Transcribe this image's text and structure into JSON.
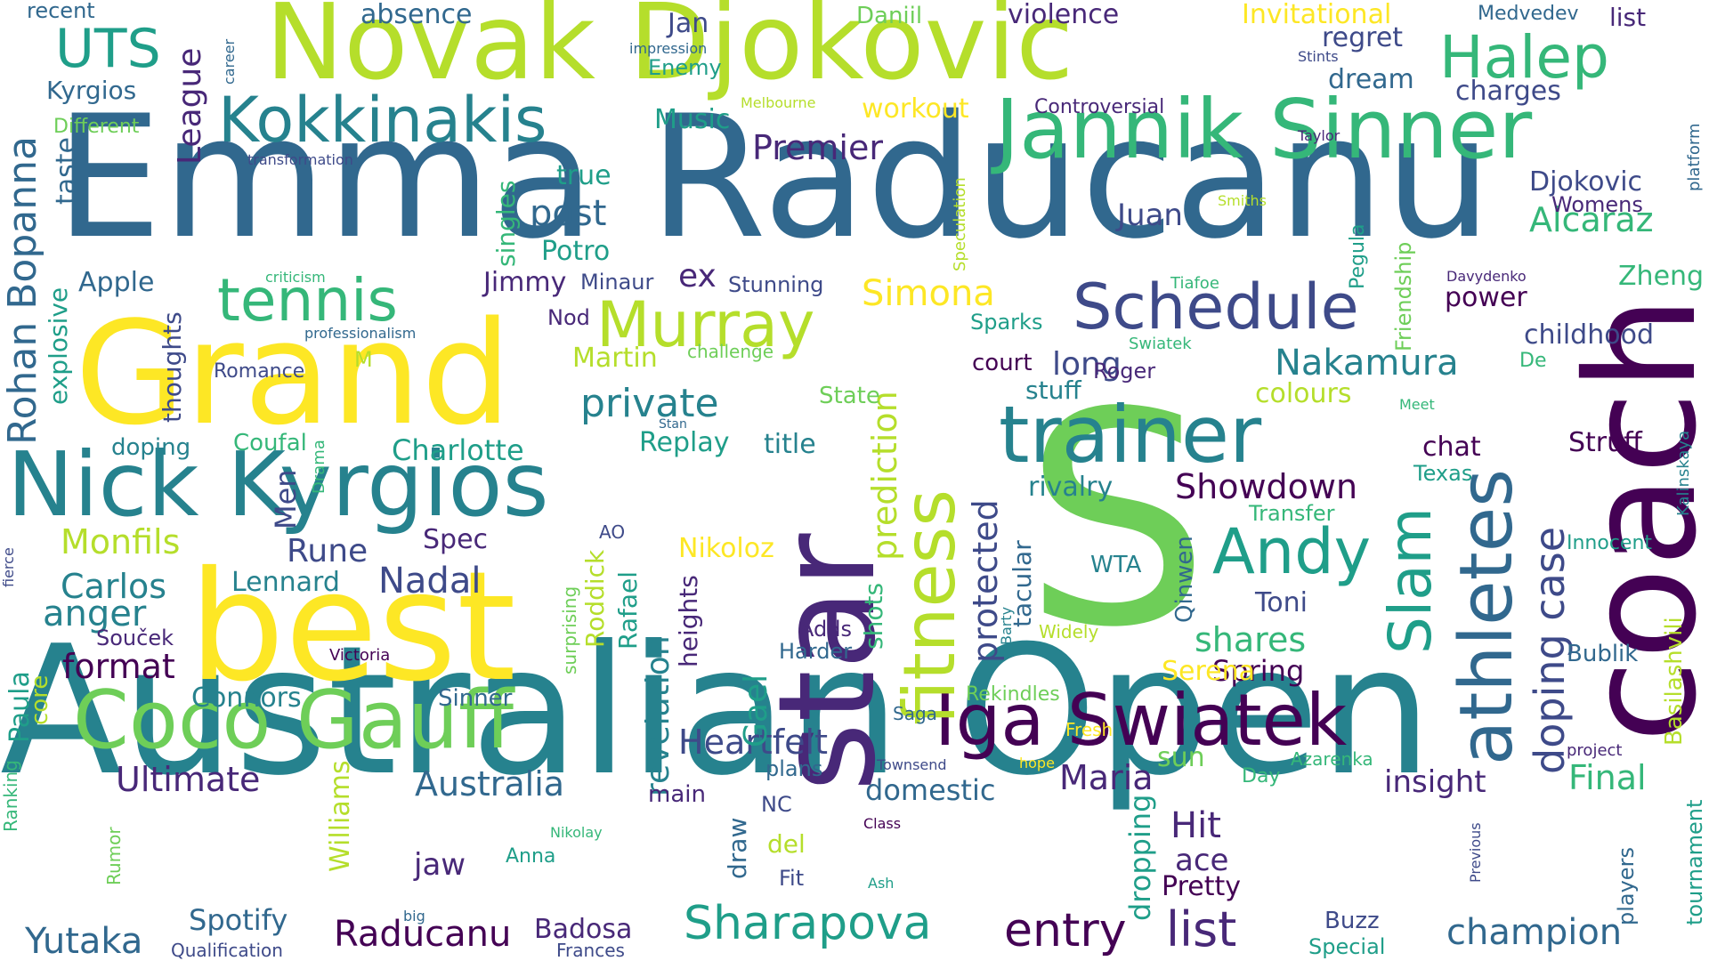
{
  "palette": {
    "v1": "#440154",
    "v2": "#482878",
    "v3": "#3e4a89",
    "v4": "#31688e",
    "v5": "#26828e",
    "v6": "#1f9e89",
    "v7": "#35b779",
    "v8": "#6ece58",
    "v9": "#b5de2b",
    "v10": "#fde725"
  },
  "words": [
    {
      "t": "Australian Open",
      "c": "v5"
    },
    {
      "t": "Emma Raducanu",
      "c": "v4"
    },
    {
      "t": "Novak Djokovic",
      "c": "v9"
    },
    {
      "t": "Grand",
      "c": "v10"
    },
    {
      "t": "S",
      "c": "v8"
    },
    {
      "t": "coach",
      "c": "v1"
    },
    {
      "t": "best",
      "c": "v10"
    },
    {
      "t": "star",
      "c": "v2"
    },
    {
      "t": "Nick Kyrgios",
      "c": "v5"
    },
    {
      "t": "Jannik Sinner",
      "c": "v7"
    },
    {
      "t": "Coco Gauff",
      "c": "v8"
    },
    {
      "t": "athletes",
      "c": "v4"
    },
    {
      "t": "trainer",
      "c": "v5"
    },
    {
      "t": "Iga Swiatek",
      "c": "v1"
    },
    {
      "t": "fitness",
      "c": "v9"
    },
    {
      "t": "Kokkinakis",
      "c": "v5"
    },
    {
      "t": "Schedule",
      "c": "v3"
    },
    {
      "t": "Halep",
      "c": "v7"
    },
    {
      "t": "Murray",
      "c": "v9"
    },
    {
      "t": "tennis",
      "c": "v7"
    },
    {
      "t": "Andy",
      "c": "v6"
    },
    {
      "t": "Slam",
      "c": "v6"
    },
    {
      "t": "Rohan Bopanna",
      "c": "v4"
    },
    {
      "t": "UTS",
      "c": "v6"
    },
    {
      "t": "Sharapova",
      "c": "v6"
    },
    {
      "t": "entry",
      "c": "v1"
    },
    {
      "t": "list",
      "c": "v2"
    },
    {
      "t": "Raducanu",
      "c": "v1"
    },
    {
      "t": "champion",
      "c": "v4"
    },
    {
      "t": "Yutaka",
      "c": "v4"
    },
    {
      "t": "Premier",
      "c": "v2"
    },
    {
      "t": "Alcaraz",
      "c": "v7"
    },
    {
      "t": "Nakamura",
      "c": "v5"
    },
    {
      "t": "Simona",
      "c": "v10"
    },
    {
      "t": "prediction",
      "c": "v9"
    },
    {
      "t": "doping case",
      "c": "v3"
    },
    {
      "t": "League",
      "c": "v2"
    },
    {
      "t": "Showdown",
      "c": "v1"
    },
    {
      "t": "Heartfelt",
      "c": "v3"
    },
    {
      "t": "revelation",
      "c": "v5"
    },
    {
      "t": "Ultimate",
      "c": "v2"
    },
    {
      "t": "Australia",
      "c": "v4"
    },
    {
      "t": "protected",
      "c": "v3"
    },
    {
      "t": "Maria",
      "c": "v2"
    },
    {
      "t": "Final",
      "c": "v7"
    },
    {
      "t": "insight",
      "c": "v2"
    },
    {
      "t": "post",
      "c": "v4"
    },
    {
      "t": "private",
      "c": "v5"
    },
    {
      "t": "Carlos",
      "c": "v5"
    },
    {
      "t": "anger",
      "c": "v5"
    },
    {
      "t": "Monfils",
      "c": "v9"
    },
    {
      "t": "format",
      "c": "v1"
    },
    {
      "t": "Nadal",
      "c": "v3"
    },
    {
      "t": "Rune",
      "c": "v3"
    },
    {
      "t": "Charlotte",
      "c": "v6"
    },
    {
      "t": "shares",
      "c": "v7"
    },
    {
      "t": "Spring",
      "c": "v1"
    },
    {
      "t": "Hit",
      "c": "v2"
    },
    {
      "t": "ace",
      "c": "v2"
    },
    {
      "t": "Pretty",
      "c": "v1"
    },
    {
      "t": "dropping",
      "c": "v6"
    },
    {
      "t": "Williams",
      "c": "v9"
    },
    {
      "t": "Connors",
      "c": "v5"
    },
    {
      "t": "Spotify",
      "c": "v4"
    },
    {
      "t": "jaw",
      "c": "v2"
    },
    {
      "t": "Badosa",
      "c": "v2"
    },
    {
      "t": "rivalry",
      "c": "v5"
    },
    {
      "t": "childhood",
      "c": "v3"
    },
    {
      "t": "power",
      "c": "v1"
    },
    {
      "t": "Zheng",
      "c": "v7"
    },
    {
      "t": "Djokovic",
      "c": "v3"
    },
    {
      "t": "Womens",
      "c": "v2"
    },
    {
      "t": "Struff",
      "c": "v1"
    },
    {
      "t": "chat",
      "c": "v1"
    },
    {
      "t": "title",
      "c": "v5"
    },
    {
      "t": "court",
      "c": "v1"
    },
    {
      "t": "long",
      "c": "v3"
    },
    {
      "t": "stuff",
      "c": "v5"
    },
    {
      "t": "colours",
      "c": "v9"
    },
    {
      "t": "Roger",
      "c": "v2"
    },
    {
      "t": "Sparks",
      "c": "v6"
    },
    {
      "t": "Juan",
      "c": "v3"
    },
    {
      "t": "charges",
      "c": "v3"
    },
    {
      "t": "dream",
      "c": "v4"
    },
    {
      "t": "regret",
      "c": "v3"
    },
    {
      "t": "Jan",
      "c": "v3"
    },
    {
      "t": "list",
      "c": "v2"
    },
    {
      "t": "Medvedev",
      "c": "v4"
    },
    {
      "t": "Invitational",
      "c": "v10"
    },
    {
      "t": "violence",
      "c": "v2"
    },
    {
      "t": "Daniil",
      "c": "v8"
    },
    {
      "t": "absence",
      "c": "v4"
    },
    {
      "t": "recent",
      "c": "v4"
    },
    {
      "t": "workout",
      "c": "v10"
    },
    {
      "t": "Controversial",
      "c": "v2"
    },
    {
      "t": "Music",
      "c": "v6"
    },
    {
      "t": "Enemy",
      "c": "v6"
    },
    {
      "t": "impression",
      "c": "v4"
    },
    {
      "t": "true",
      "c": "v6"
    },
    {
      "t": "Potro",
      "c": "v6"
    },
    {
      "t": "Jimmy",
      "c": "v2"
    },
    {
      "t": "Minaur",
      "c": "v3"
    },
    {
      "t": "ex",
      "c": "v2"
    },
    {
      "t": "Stunning",
      "c": "v3"
    },
    {
      "t": "Nod",
      "c": "v2"
    },
    {
      "t": "Martin",
      "c": "v9"
    },
    {
      "t": "challenge",
      "c": "v8"
    },
    {
      "t": "Apple",
      "c": "v4"
    },
    {
      "t": "Kyrgios",
      "c": "v4"
    },
    {
      "t": "Different",
      "c": "v8"
    },
    {
      "t": "transformation",
      "c": "v3"
    },
    {
      "t": "taste",
      "c": "v4"
    },
    {
      "t": "singles",
      "c": "v7"
    },
    {
      "t": "explosive",
      "c": "v6"
    },
    {
      "t": "thoughts",
      "c": "v3"
    },
    {
      "t": "Romance",
      "c": "v3"
    },
    {
      "t": "professionalism",
      "c": "v4"
    },
    {
      "t": "criticism",
      "c": "v7"
    },
    {
      "t": "M",
      "c": "v9"
    },
    {
      "t": "doping",
      "c": "v5"
    },
    {
      "t": "Coufal",
      "c": "v7"
    },
    {
      "t": "Replay",
      "c": "v6"
    },
    {
      "t": "State",
      "c": "v8"
    },
    {
      "t": "Stan",
      "c": "v4"
    },
    {
      "t": "Men",
      "c": "v3"
    },
    {
      "t": "Drama",
      "c": "v7"
    },
    {
      "t": "Lennard",
      "c": "v5"
    },
    {
      "t": "Spec",
      "c": "v2"
    },
    {
      "t": "AO",
      "c": "v3"
    },
    {
      "t": "Nikoloz",
      "c": "v10"
    },
    {
      "t": "Roddick",
      "c": "v9"
    },
    {
      "t": "Rafael",
      "c": "v6"
    },
    {
      "t": "surprising",
      "c": "v8"
    },
    {
      "t": "heights",
      "c": "v2"
    },
    {
      "t": "Gael",
      "c": "v6"
    },
    {
      "t": "shots",
      "c": "v7"
    },
    {
      "t": "Adds",
      "c": "v2"
    },
    {
      "t": "Harder",
      "c": "v4"
    },
    {
      "t": "tacular",
      "c": "v4"
    },
    {
      "t": "Barty",
      "c": "v5"
    },
    {
      "t": "WTA",
      "c": "v5"
    },
    {
      "t": "Widely",
      "c": "v9"
    },
    {
      "t": "Qinwen",
      "c": "v4"
    },
    {
      "t": "Toni",
      "c": "v3"
    },
    {
      "t": "Serena",
      "c": "v10"
    },
    {
      "t": "Texas",
      "c": "v6"
    },
    {
      "t": "Transfer",
      "c": "v7"
    },
    {
      "t": "Innocent",
      "c": "v6"
    },
    {
      "t": "Basilashvili",
      "c": "v9"
    },
    {
      "t": "Kalinskaya",
      "c": "v5"
    },
    {
      "t": "Bublik",
      "c": "v4"
    },
    {
      "t": "project",
      "c": "v2"
    },
    {
      "t": "Rekindles",
      "c": "v8"
    },
    {
      "t": "Saga",
      "c": "v4"
    },
    {
      "t": "Fresh",
      "c": "v10"
    },
    {
      "t": "hope",
      "c": "v10"
    },
    {
      "t": "Azarenka",
      "c": "v7"
    },
    {
      "t": "Townsend",
      "c": "v3"
    },
    {
      "t": "sun",
      "c": "v8"
    },
    {
      "t": "Day",
      "c": "v7"
    },
    {
      "t": "plans",
      "c": "v4"
    },
    {
      "t": "domestic",
      "c": "v4"
    },
    {
      "t": "main",
      "c": "v2"
    },
    {
      "t": "NC",
      "c": "v3"
    },
    {
      "t": "del",
      "c": "v9"
    },
    {
      "t": "draw",
      "c": "v4"
    },
    {
      "t": "Class",
      "c": "v1"
    },
    {
      "t": "Fit",
      "c": "v3"
    },
    {
      "t": "Ash",
      "c": "v6"
    },
    {
      "t": "Nikolay",
      "c": "v7"
    },
    {
      "t": "Anna",
      "c": "v6"
    },
    {
      "t": "big",
      "c": "v4"
    },
    {
      "t": "Sinner",
      "c": "v4"
    },
    {
      "t": "Frances",
      "c": "v3"
    },
    {
      "t": "Qualification",
      "c": "v3"
    },
    {
      "t": "Buzz",
      "c": "v3"
    },
    {
      "t": "Special",
      "c": "v6"
    },
    {
      "t": "players",
      "c": "v4"
    },
    {
      "t": "tournament",
      "c": "v6"
    },
    {
      "t": "Previous",
      "c": "v3"
    },
    {
      "t": "platform",
      "c": "v4"
    },
    {
      "t": "Stints",
      "c": "v3"
    },
    {
      "t": "Taylor",
      "c": "v2"
    },
    {
      "t": "Smiths",
      "c": "v9"
    },
    {
      "t": "Speculation",
      "c": "v9"
    },
    {
      "t": "Friendship",
      "c": "v8"
    },
    {
      "t": "Pegula",
      "c": "v6"
    },
    {
      "t": "Tiafoe",
      "c": "v7"
    },
    {
      "t": "Davydenko",
      "c": "v2"
    },
    {
      "t": "Swiatek",
      "c": "v7"
    },
    {
      "t": "Meet",
      "c": "v7"
    },
    {
      "t": "De",
      "c": "v7"
    },
    {
      "t": "Melbourne",
      "c": "v9"
    },
    {
      "t": "career",
      "c": "v4"
    },
    {
      "t": "fierce",
      "c": "v3"
    },
    {
      "t": "Ranking",
      "c": "v7"
    },
    {
      "t": "Rumor",
      "c": "v8"
    },
    {
      "t": "Paula",
      "c": "v6"
    },
    {
      "t": "core",
      "c": "v9"
    },
    {
      "t": "Souček",
      "c": "v2"
    },
    {
      "t": "Victoria",
      "c": "v1"
    }
  ]
}
